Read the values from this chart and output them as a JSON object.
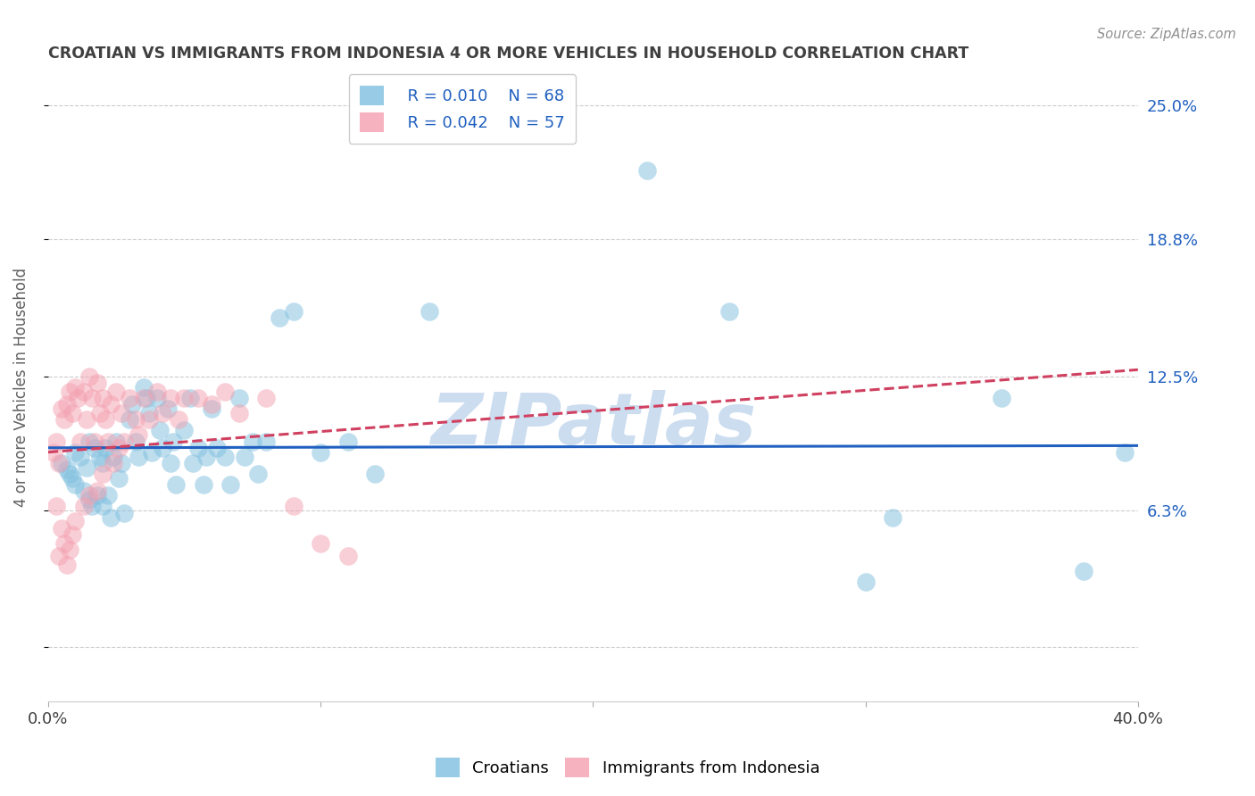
{
  "title": "CROATIAN VS IMMIGRANTS FROM INDONESIA 4 OR MORE VEHICLES IN HOUSEHOLD CORRELATION CHART",
  "source": "Source: ZipAtlas.com",
  "ylabel": "4 or more Vehicles in Household",
  "xlim": [
    0.0,
    0.4
  ],
  "ylim": [
    -0.025,
    0.265
  ],
  "ytick_vals": [
    0.0,
    0.063,
    0.125,
    0.188,
    0.25
  ],
  "ytick_labels_right": [
    "",
    "6.3%",
    "12.5%",
    "18.8%",
    "25.0%"
  ],
  "xtick_vals": [
    0.0,
    0.1,
    0.2,
    0.3,
    0.4
  ],
  "xtick_labels": [
    "0.0%",
    "",
    "",
    "",
    "40.0%"
  ],
  "legend_R1": "R = 0.010",
  "legend_N1": "N = 68",
  "legend_R2": "R = 0.042",
  "legend_N2": "N = 57",
  "blue_color": "#7fbfdf",
  "pink_color": "#f4a0b0",
  "line_blue_color": "#2060c0",
  "line_pink_color": "#d04060",
  "title_color": "#404040",
  "source_color": "#909090",
  "legend_text_color": "#2060c0",
  "axis_label_color": "#606060",
  "right_label_color": "#2060c0",
  "watermark_text": "ZIPatlas",
  "watermark_color": "#ccddf0",
  "bg_color": "#ffffff",
  "grid_color": "#cccccc",
  "blue_line_y0": 0.092,
  "blue_line_y1": 0.093,
  "pink_line_y0": 0.09,
  "pink_line_y1": 0.128,
  "blue_x": [
    0.005,
    0.007,
    0.008,
    0.009,
    0.01,
    0.01,
    0.012,
    0.013,
    0.014,
    0.015,
    0.015,
    0.016,
    0.017,
    0.018,
    0.019,
    0.02,
    0.02,
    0.021,
    0.022,
    0.023,
    0.024,
    0.025,
    0.026,
    0.027,
    0.028,
    0.03,
    0.031,
    0.032,
    0.033,
    0.035,
    0.036,
    0.037,
    0.038,
    0.04,
    0.041,
    0.042,
    0.044,
    0.045,
    0.046,
    0.047,
    0.05,
    0.052,
    0.053,
    0.055,
    0.057,
    0.058,
    0.06,
    0.062,
    0.065,
    0.067,
    0.07,
    0.072,
    0.075,
    0.077,
    0.08,
    0.085,
    0.09,
    0.1,
    0.11,
    0.12,
    0.14,
    0.22,
    0.25,
    0.3,
    0.31,
    0.35,
    0.38,
    0.395
  ],
  "blue_y": [
    0.085,
    0.082,
    0.08,
    0.078,
    0.09,
    0.075,
    0.088,
    0.072,
    0.083,
    0.068,
    0.095,
    0.065,
    0.092,
    0.07,
    0.088,
    0.085,
    0.065,
    0.092,
    0.07,
    0.06,
    0.088,
    0.095,
    0.078,
    0.085,
    0.062,
    0.105,
    0.112,
    0.095,
    0.088,
    0.12,
    0.115,
    0.108,
    0.09,
    0.115,
    0.1,
    0.092,
    0.11,
    0.085,
    0.095,
    0.075,
    0.1,
    0.115,
    0.085,
    0.092,
    0.075,
    0.088,
    0.11,
    0.092,
    0.088,
    0.075,
    0.115,
    0.088,
    0.095,
    0.08,
    0.095,
    0.152,
    0.155,
    0.09,
    0.095,
    0.08,
    0.155,
    0.22,
    0.155,
    0.03,
    0.06,
    0.115,
    0.035,
    0.09
  ],
  "pink_x": [
    0.002,
    0.003,
    0.003,
    0.004,
    0.004,
    0.005,
    0.005,
    0.006,
    0.006,
    0.007,
    0.007,
    0.008,
    0.008,
    0.009,
    0.009,
    0.01,
    0.01,
    0.011,
    0.012,
    0.013,
    0.013,
    0.014,
    0.015,
    0.015,
    0.016,
    0.017,
    0.018,
    0.018,
    0.019,
    0.02,
    0.02,
    0.021,
    0.022,
    0.023,
    0.024,
    0.025,
    0.026,
    0.027,
    0.028,
    0.03,
    0.032,
    0.033,
    0.035,
    0.037,
    0.04,
    0.042,
    0.045,
    0.048,
    0.05,
    0.055,
    0.06,
    0.065,
    0.07,
    0.08,
    0.09,
    0.1,
    0.11
  ],
  "pink_y": [
    0.09,
    0.095,
    0.065,
    0.085,
    0.042,
    0.11,
    0.055,
    0.105,
    0.048,
    0.112,
    0.038,
    0.118,
    0.045,
    0.108,
    0.052,
    0.12,
    0.058,
    0.115,
    0.095,
    0.118,
    0.065,
    0.105,
    0.125,
    0.07,
    0.115,
    0.095,
    0.122,
    0.072,
    0.108,
    0.115,
    0.08,
    0.105,
    0.095,
    0.112,
    0.085,
    0.118,
    0.092,
    0.108,
    0.095,
    0.115,
    0.105,
    0.098,
    0.115,
    0.105,
    0.118,
    0.108,
    0.115,
    0.105,
    0.115,
    0.115,
    0.112,
    0.118,
    0.108,
    0.115,
    0.065,
    0.048,
    0.042
  ]
}
